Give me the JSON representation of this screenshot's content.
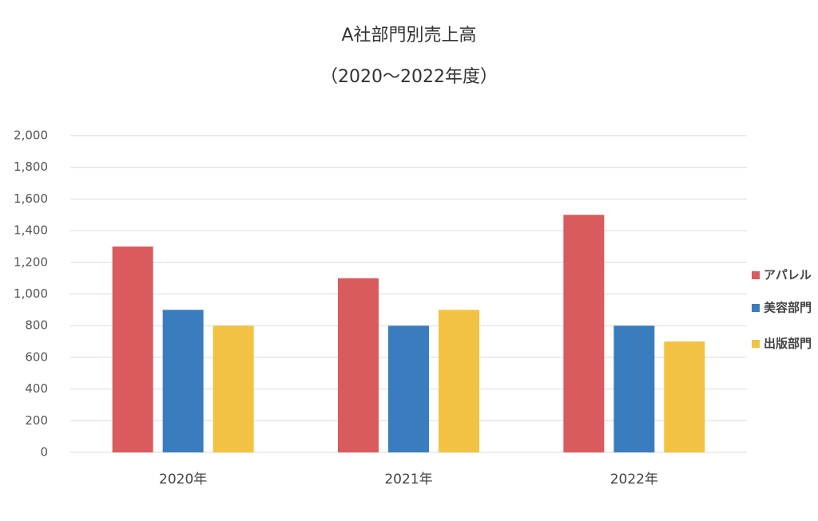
{
  "chart_data": {
    "type": "bar",
    "title": "A社部門別売上高",
    "subtitle": "（2020～2022年度）",
    "categories": [
      "2020年",
      "2021年",
      "2022年"
    ],
    "series": [
      {
        "name": "アパレル",
        "color": "#d95b5e",
        "values": [
          1300,
          1100,
          1500
        ]
      },
      {
        "name": "美容部門",
        "color": "#3a7dbf",
        "values": [
          900,
          800,
          800
        ]
      },
      {
        "name": "出版部門",
        "color": "#f4c242",
        "values": [
          800,
          900,
          700
        ]
      }
    ],
    "ylim": [
      0,
      2000
    ],
    "yticks": [
      0,
      200,
      400,
      600,
      800,
      {
        "value": 1000,
        "label": "1,000"
      },
      {
        "value": 1200,
        "label": "1,200"
      },
      {
        "value": 1400,
        "label": "1,400"
      },
      {
        "value": 1600,
        "label": "1,600"
      },
      {
        "value": 1800,
        "label": "1,800"
      },
      {
        "value": 2000,
        "label": "2,000"
      }
    ],
    "grid": true,
    "legend": "right"
  }
}
